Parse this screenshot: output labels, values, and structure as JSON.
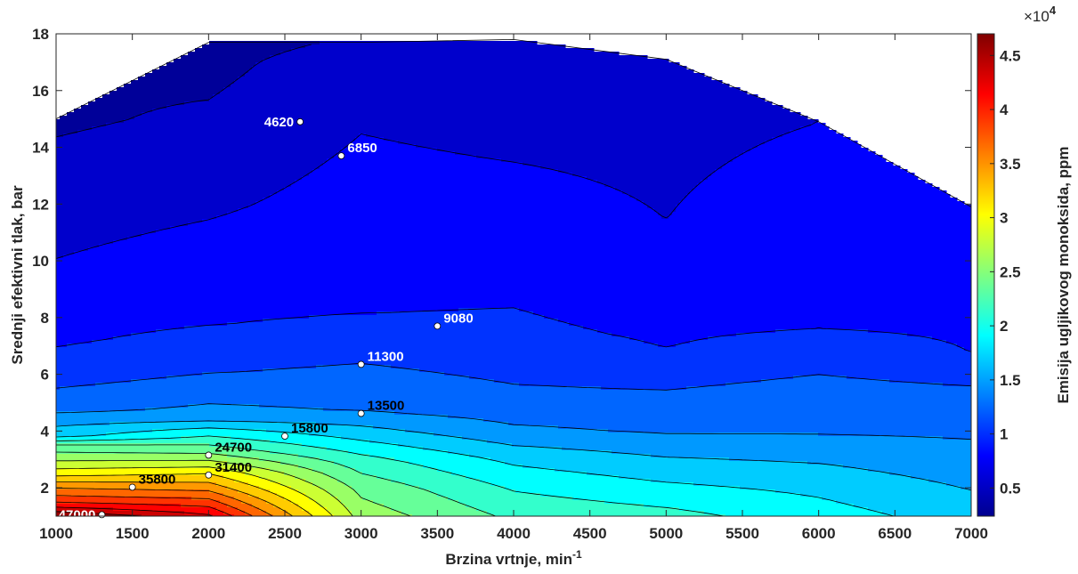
{
  "chart_data": {
    "type": "heatmap",
    "subtype": "filled-contour",
    "title": "",
    "xlabel": "Brzina vrtnje, min",
    "xlabel_superscript": "-1",
    "ylabel": "Srednji efektivni tlak, bar",
    "colorbar_label": "Emisija ugljikovog monoksida, ppm",
    "colorbar_exponent_base": "×10",
    "colorbar_exponent_power": "4",
    "colormap": "jet",
    "xlim": [
      1000,
      7000
    ],
    "ylim": [
      1,
      18
    ],
    "clim": [
      2400,
      47000
    ],
    "x_ticks": [
      1000,
      1500,
      2000,
      2500,
      3000,
      3500,
      4000,
      4500,
      5000,
      5500,
      6000,
      6500,
      7000
    ],
    "y_ticks": [
      2,
      4,
      6,
      8,
      10,
      12,
      14,
      16,
      18
    ],
    "colorbar_ticks": [
      0.5,
      1,
      1.5,
      2,
      2.5,
      3,
      3.5,
      4,
      4.5
    ],
    "grid": false,
    "data_domain": {
      "speed": [
        1000,
        2000,
        3000,
        4000,
        5000,
        6000,
        7000
      ],
      "top_load": [
        15,
        17.7,
        17.7,
        17.8,
        17.1,
        14.9,
        11.9
      ]
    },
    "contour_labels": [
      {
        "text": "4620",
        "x": 2600,
        "y": 14.9,
        "color": "#ffffff"
      },
      {
        "text": "6850",
        "x": 2870,
        "y": 13.7,
        "color": "#ffffff"
      },
      {
        "text": "9080",
        "x": 3500,
        "y": 7.7,
        "color": "#ffffff"
      },
      {
        "text": "11300",
        "x": 3000,
        "y": 6.35,
        "color": "#ffffff"
      },
      {
        "text": "13500",
        "x": 3000,
        "y": 4.62,
        "color": "#000000"
      },
      {
        "text": "15800",
        "x": 2500,
        "y": 3.82,
        "color": "#000000"
      },
      {
        "text": "24700",
        "x": 2000,
        "y": 3.15,
        "color": "#000000"
      },
      {
        "text": "31400",
        "x": 2000,
        "y": 2.45,
        "color": "#000000"
      },
      {
        "text": "35800",
        "x": 1500,
        "y": 2.02,
        "color": "#000000"
      },
      {
        "text": "47000",
        "x": 1300,
        "y": 1.05,
        "color": "#ffffff"
      }
    ]
  }
}
